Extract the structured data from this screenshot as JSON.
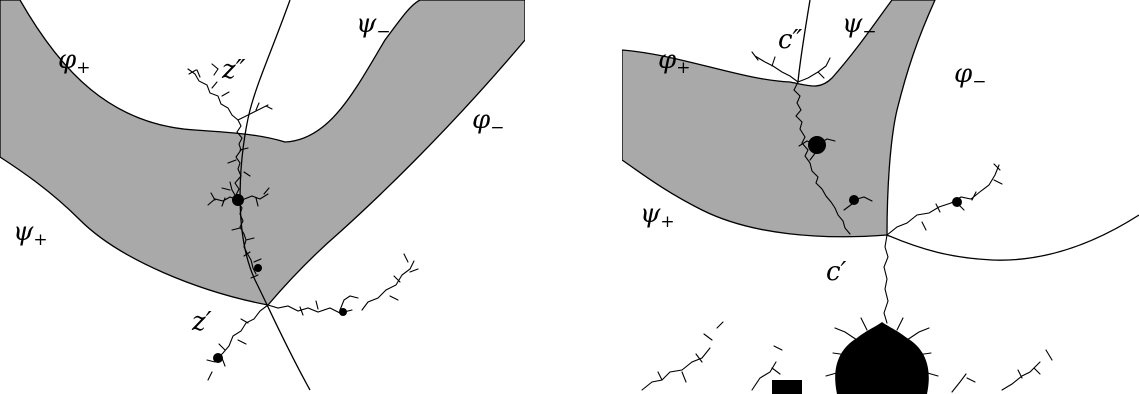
{
  "panels": [
    {
      "labels": {
        "phi_plus": {
          "base": "φ",
          "sub": "+"
        },
        "psi_minus": {
          "base": "ψ",
          "sub": "−"
        },
        "phi_minus": {
          "base": "φ",
          "sub": "−"
        },
        "psi_plus": {
          "base": "ψ",
          "sub": "+"
        },
        "z_double_prime": "z″",
        "z_prime": "z′"
      }
    },
    {
      "labels": {
        "phi_plus": {
          "base": "φ",
          "sub": "+"
        },
        "psi_minus": {
          "base": "ψ",
          "sub": "−"
        },
        "phi_minus": {
          "base": "φ",
          "sub": "−"
        },
        "psi_plus": {
          "base": "ψ",
          "sub": "+"
        },
        "c_double_prime": "c″",
        "c_prime": "c′"
      }
    }
  ],
  "colors": {
    "band_fill": "#a9a9a9",
    "line": "#000000",
    "background": "#ffffff"
  }
}
